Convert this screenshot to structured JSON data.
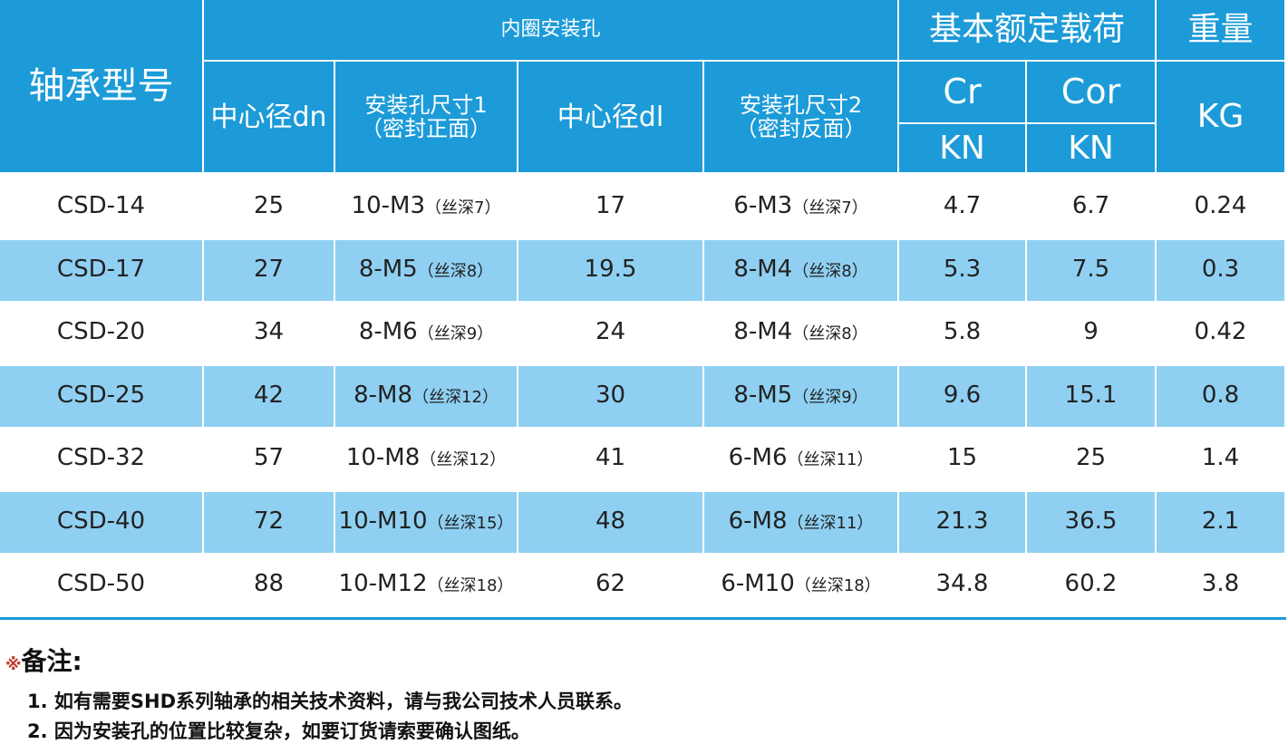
{
  "header": {
    "model": "轴承型号",
    "inner_holes": "内圈安装孔",
    "dn": "中心径dn",
    "hole1": [
      "安装孔尺寸1",
      "（密封正面）"
    ],
    "dl": "中心径dl",
    "hole2": [
      "安装孔尺寸2",
      "（密封反面）"
    ],
    "load": "基本额定载荷",
    "cr": "Cr",
    "cor": "Cor",
    "cr_unit": "KN",
    "cor_unit": "KN",
    "weight": "重量",
    "weight_unit": "KG"
  },
  "rows": [
    [
      "CSD-14",
      25,
      "10-M3",
      "（丝深7）",
      17,
      "6-M3",
      "（丝深7）",
      4.7,
      6.7,
      0.24
    ],
    [
      "CSD-17",
      27,
      "8-M5",
      "（丝深8）",
      19.5,
      "8-M4",
      "（丝深8）",
      5.3,
      7.5,
      0.3
    ],
    [
      "CSD-20",
      34,
      "8-M6",
      "（丝深9）",
      24,
      "8-M4",
      "（丝深8）",
      5.8,
      9,
      0.42
    ],
    [
      "CSD-25",
      42,
      "8-M8",
      "（丝深12）",
      30,
      "8-M5",
      "（丝深9）",
      9.6,
      15.1,
      0.8
    ],
    [
      "CSD-32",
      57,
      "10-M8",
      "（丝深12）",
      41,
      "6-M6",
      "（丝深11）",
      15,
      25,
      1.4
    ],
    [
      "CSD-40",
      72,
      "10-M10",
      "（丝深15）",
      48,
      "6-M8",
      "（丝深11）",
      21.3,
      36.5,
      2.1
    ],
    [
      "CSD-50",
      88,
      "10-M12",
      "（丝深18）",
      62,
      "6-M10",
      "（丝深18）",
      34.8,
      60.2,
      3.8
    ]
  ],
  "notes": {
    "mark": "※",
    "title": "备注:",
    "items": [
      "1. 如有需要SHD系列轴承的相关技术资料，请与我公司技术人员联系。",
      "2. 因为安装孔的位置比较复杂，如要订货请索要确认图纸。"
    ]
  }
}
